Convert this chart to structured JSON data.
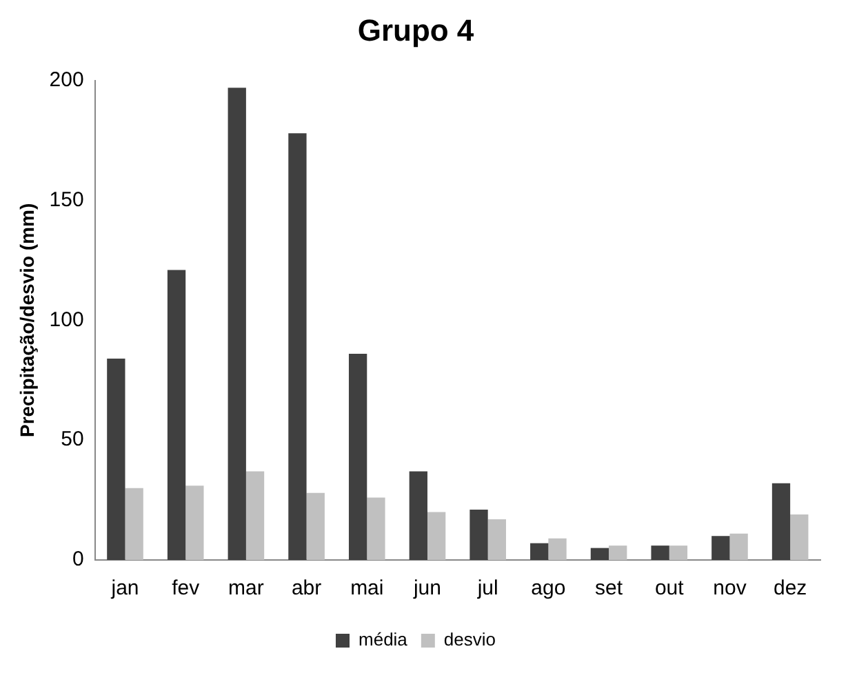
{
  "chart_data": {
    "type": "bar",
    "title": "Grupo 4",
    "ylabel": "Precipitação/desvio (mm)",
    "categories": [
      "jan",
      "fev",
      "mar",
      "abr",
      "mai",
      "jun",
      "jul",
      "ago",
      "set",
      "out",
      "nov",
      "dez"
    ],
    "series": [
      {
        "name": "média",
        "color": "#404040",
        "values": [
          84,
          121,
          197,
          178,
          86,
          37,
          21,
          7,
          5,
          6,
          10,
          32
        ]
      },
      {
        "name": "desvio",
        "color": "#c0c0c0",
        "values": [
          30,
          31,
          37,
          28,
          26,
          20,
          17,
          9,
          6,
          6,
          11,
          19
        ]
      }
    ],
    "ylim": [
      0,
      200
    ],
    "yticks": [
      0,
      50,
      100,
      150,
      200
    ],
    "grid": false,
    "legend": "bottom"
  }
}
